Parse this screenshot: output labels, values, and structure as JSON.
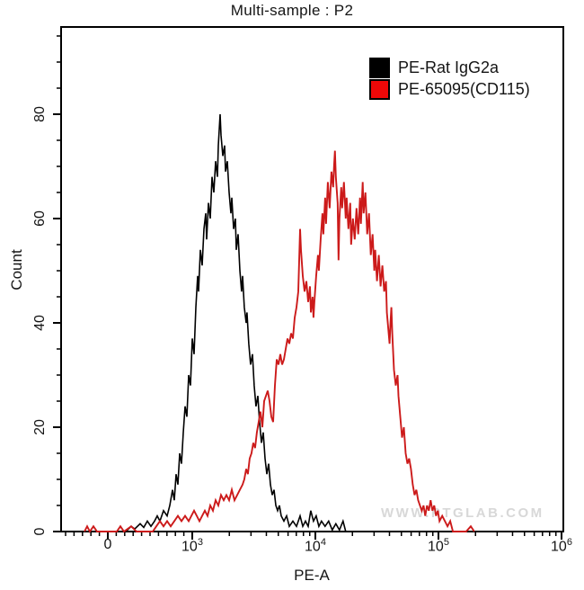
{
  "title": "Multi-sample : P2",
  "watermark": "WWW.PTGLAB.COM",
  "legend": {
    "items": [
      {
        "label": "PE-Rat IgG2a",
        "swatch_color": "#000000"
      },
      {
        "label": "PE-65095(CD115)",
        "swatch_color": "#ee0808"
      }
    ]
  },
  "chart_data": {
    "type": "line",
    "subtype": "flow-cytometry-histogram-overlay",
    "title": "Multi-sample : P2",
    "xlabel": "PE-A",
    "ylabel": "Count",
    "x_scale": "biexponential: linear from -550 to 1000, logarithmic above 1000",
    "xlim": [
      -550,
      1000000
    ],
    "ylim": [
      0,
      97
    ],
    "grid": false,
    "legend_position": "top-right",
    "x_major_ticks": [
      {
        "value": 0,
        "base": "0",
        "exp": ""
      },
      {
        "value": 1000,
        "base": "10",
        "exp": "3"
      },
      {
        "value": 10000,
        "base": "10",
        "exp": "4"
      },
      {
        "value": 100000,
        "base": "10",
        "exp": "5"
      },
      {
        "value": 1000000,
        "base": "10",
        "exp": "6"
      }
    ],
    "x_minor_ticks": [
      -500,
      -400,
      -300,
      -200,
      -100,
      100,
      200,
      300,
      400,
      500,
      600,
      700,
      800,
      900,
      2000,
      3000,
      4000,
      5000,
      6000,
      7000,
      8000,
      9000,
      20000,
      30000,
      40000,
      50000,
      60000,
      70000,
      80000,
      90000,
      200000,
      300000,
      400000,
      500000,
      600000,
      700000,
      800000,
      900000
    ],
    "y_major_ticks": [
      0,
      20,
      40,
      60,
      80
    ],
    "y_minor_ticks": [
      5,
      10,
      15,
      25,
      30,
      35,
      45,
      50,
      55,
      65,
      70,
      75,
      85,
      90,
      95
    ],
    "series": [
      {
        "name": "PE-Rat IgG2a",
        "color": "#000000",
        "stroke_width": 1.6,
        "points": [
          [
            213,
            0
          ],
          [
            277,
            1
          ],
          [
            319,
            0.5
          ],
          [
            383,
            1.5
          ],
          [
            426,
            0.8
          ],
          [
            468,
            2
          ],
          [
            511,
            1
          ],
          [
            553,
            2
          ],
          [
            585,
            3
          ],
          [
            617,
            2
          ],
          [
            660,
            4
          ],
          [
            702,
            3
          ],
          [
            734,
            5
          ],
          [
            766,
            8
          ],
          [
            787,
            6
          ],
          [
            809,
            11
          ],
          [
            830,
            9
          ],
          [
            851,
            15
          ],
          [
            872,
            13
          ],
          [
            894,
            19
          ],
          [
            915,
            24
          ],
          [
            936,
            22
          ],
          [
            957,
            30
          ],
          [
            979,
            28
          ],
          [
            1000,
            37
          ],
          [
            1034,
            34
          ],
          [
            1069,
            43
          ],
          [
            1106,
            49
          ],
          [
            1125,
            46
          ],
          [
            1163,
            54
          ],
          [
            1203,
            51
          ],
          [
            1244,
            58
          ],
          [
            1287,
            61
          ],
          [
            1309,
            56
          ],
          [
            1353,
            63
          ],
          [
            1400,
            60
          ],
          [
            1447,
            68
          ],
          [
            1497,
            65
          ],
          [
            1548,
            71
          ],
          [
            1601,
            68
          ],
          [
            1628,
            74
          ],
          [
            1683,
            80
          ],
          [
            1712,
            76
          ],
          [
            1770,
            72
          ],
          [
            1831,
            74
          ],
          [
            1862,
            69
          ],
          [
            1925,
            71
          ],
          [
            1991,
            65
          ],
          [
            2059,
            61
          ],
          [
            2094,
            64
          ],
          [
            2165,
            58
          ],
          [
            2239,
            60
          ],
          [
            2277,
            54
          ],
          [
            2355,
            57
          ],
          [
            2435,
            50
          ],
          [
            2518,
            46
          ],
          [
            2561,
            49
          ],
          [
            2648,
            43
          ],
          [
            2739,
            40
          ],
          [
            2785,
            42
          ],
          [
            2880,
            36
          ],
          [
            2979,
            32
          ],
          [
            3081,
            34
          ],
          [
            3186,
            28
          ],
          [
            3295,
            24
          ],
          [
            3408,
            26
          ],
          [
            3524,
            21
          ],
          [
            3645,
            17
          ],
          [
            3770,
            19
          ],
          [
            3899,
            14
          ],
          [
            4032,
            11
          ],
          [
            4170,
            13
          ],
          [
            4313,
            9
          ],
          [
            4460,
            7
          ],
          [
            4613,
            8
          ],
          [
            4770,
            5
          ],
          [
            4934,
            4
          ],
          [
            5102,
            5
          ],
          [
            5277,
            3
          ],
          [
            5550,
            2
          ],
          [
            5837,
            3
          ],
          [
            6139,
            1
          ],
          [
            6567,
            2
          ],
          [
            7024,
            1
          ],
          [
            7514,
            3
          ],
          [
            7901,
            1
          ],
          [
            8309,
            2
          ],
          [
            8736,
            1
          ],
          [
            9184,
            4
          ],
          [
            9655,
            2
          ],
          [
            10151,
            3
          ],
          [
            10672,
            1
          ],
          [
            11219,
            2
          ],
          [
            12000,
            1
          ],
          [
            12834,
            2
          ],
          [
            13726,
            0.3
          ],
          [
            14680,
            1.5
          ],
          [
            15700,
            0.3
          ],
          [
            16791,
            2
          ],
          [
            17653,
            0
          ]
        ]
      },
      {
        "name": "PE-65095(CD115)",
        "color": "#cc1a1a",
        "stroke_width": 1.9,
        "points": [
          [
            -277,
            0
          ],
          [
            -245,
            1
          ],
          [
            -213,
            0
          ],
          [
            -170,
            1
          ],
          [
            -128,
            0
          ],
          [
            106,
            0
          ],
          [
            149,
            1
          ],
          [
            191,
            0
          ],
          [
            277,
            1
          ],
          [
            340,
            0
          ],
          [
            532,
            0
          ],
          [
            574,
            1
          ],
          [
            617,
            2
          ],
          [
            660,
            1
          ],
          [
            702,
            2
          ],
          [
            745,
            1
          ],
          [
            787,
            2
          ],
          [
            830,
            3
          ],
          [
            872,
            2
          ],
          [
            915,
            3
          ],
          [
            957,
            2
          ],
          [
            989,
            3
          ],
          [
            1034,
            4
          ],
          [
            1087,
            3
          ],
          [
            1144,
            2
          ],
          [
            1203,
            3
          ],
          [
            1265,
            4
          ],
          [
            1331,
            3
          ],
          [
            1400,
            5
          ],
          [
            1472,
            4
          ],
          [
            1548,
            6
          ],
          [
            1628,
            5
          ],
          [
            1712,
            7
          ],
          [
            1800,
            6
          ],
          [
            1893,
            7
          ],
          [
            1991,
            6
          ],
          [
            2094,
            8
          ],
          [
            2202,
            6
          ],
          [
            2316,
            7
          ],
          [
            2435,
            8
          ],
          [
            2561,
            9
          ],
          [
            2648,
            10
          ],
          [
            2739,
            12
          ],
          [
            2832,
            11
          ],
          [
            2929,
            14
          ],
          [
            3029,
            15
          ],
          [
            3133,
            17
          ],
          [
            3240,
            16
          ],
          [
            3351,
            19
          ],
          [
            3465,
            21
          ],
          [
            3584,
            23
          ],
          [
            3707,
            20
          ],
          [
            3834,
            25
          ],
          [
            3965,
            26
          ],
          [
            4100,
            27
          ],
          [
            4241,
            25
          ],
          [
            4386,
            22
          ],
          [
            4536,
            21
          ],
          [
            4691,
            28
          ],
          [
            4851,
            33
          ],
          [
            5017,
            32
          ],
          [
            5189,
            34
          ],
          [
            5366,
            32
          ],
          [
            5550,
            33
          ],
          [
            5740,
            35
          ],
          [
            5936,
            37
          ],
          [
            6139,
            36
          ],
          [
            6349,
            38
          ],
          [
            6567,
            37
          ],
          [
            6792,
            41
          ],
          [
            7024,
            43
          ],
          [
            7265,
            46
          ],
          [
            7389,
            52
          ],
          [
            7514,
            58
          ],
          [
            7641,
            54
          ],
          [
            7901,
            49
          ],
          [
            8171,
            46
          ],
          [
            8450,
            48
          ],
          [
            8736,
            44
          ],
          [
            9035,
            47
          ],
          [
            9188,
            42
          ],
          [
            9498,
            45
          ],
          [
            9659,
            41
          ],
          [
            9823,
            44
          ],
          [
            10158,
            49
          ],
          [
            10503,
            53
          ],
          [
            10681,
            50
          ],
          [
            11044,
            56
          ],
          [
            11419,
            61
          ],
          [
            11613,
            57
          ],
          [
            12008,
            64
          ],
          [
            12211,
            59
          ],
          [
            12626,
            67
          ],
          [
            13055,
            62
          ],
          [
            13499,
            69
          ],
          [
            13958,
            66
          ],
          [
            14195,
            70
          ],
          [
            14436,
            73
          ],
          [
            14681,
            68
          ],
          [
            15180,
            63
          ],
          [
            15438,
            52
          ],
          [
            15700,
            60
          ],
          [
            16234,
            66
          ],
          [
            16510,
            62
          ],
          [
            17071,
            67
          ],
          [
            17651,
            60
          ],
          [
            17951,
            64
          ],
          [
            18561,
            58
          ],
          [
            19192,
            63
          ],
          [
            19518,
            55
          ],
          [
            20181,
            60
          ],
          [
            20867,
            56
          ],
          [
            21576,
            62
          ],
          [
            22309,
            57
          ],
          [
            23067,
            64
          ],
          [
            23458,
            59
          ],
          [
            24255,
            67
          ],
          [
            24667,
            61
          ],
          [
            25505,
            65
          ],
          [
            26372,
            57
          ],
          [
            27268,
            61
          ],
          [
            28194,
            53
          ],
          [
            29152,
            57
          ],
          [
            30143,
            50
          ],
          [
            30654,
            54
          ],
          [
            31695,
            48
          ],
          [
            32772,
            53
          ],
          [
            33885,
            47
          ],
          [
            35036,
            51
          ],
          [
            36227,
            46
          ],
          [
            37458,
            48
          ],
          [
            38093,
            42
          ],
          [
            39387,
            38
          ],
          [
            40046,
            36
          ],
          [
            40726,
            40
          ],
          [
            41418,
            43
          ],
          [
            42121,
            38
          ],
          [
            43552,
            31
          ],
          [
            45032,
            28
          ],
          [
            46562,
            30
          ],
          [
            47351,
            26
          ],
          [
            48960,
            22
          ],
          [
            50623,
            18
          ],
          [
            52343,
            20
          ],
          [
            54121,
            15
          ],
          [
            55960,
            13
          ],
          [
            57861,
            14
          ],
          [
            59827,
            12
          ],
          [
            61860,
            9
          ],
          [
            63962,
            7
          ],
          [
            66135,
            8
          ],
          [
            68382,
            6
          ],
          [
            70705,
            5
          ],
          [
            73107,
            4
          ],
          [
            75591,
            5
          ],
          [
            78159,
            3
          ],
          [
            80815,
            5
          ],
          [
            83561,
            4
          ],
          [
            86400,
            6
          ],
          [
            89336,
            4
          ],
          [
            92371,
            5
          ],
          [
            95510,
            3
          ],
          [
            98755,
            4
          ],
          [
            102110,
            2
          ],
          [
            107330,
            3
          ],
          [
            112820,
            2
          ],
          [
            118580,
            1
          ],
          [
            124640,
            2
          ],
          [
            131010,
            0
          ],
          [
            167800,
            0
          ],
          [
            183100,
            1
          ],
          [
            195700,
            0
          ]
        ]
      }
    ]
  }
}
